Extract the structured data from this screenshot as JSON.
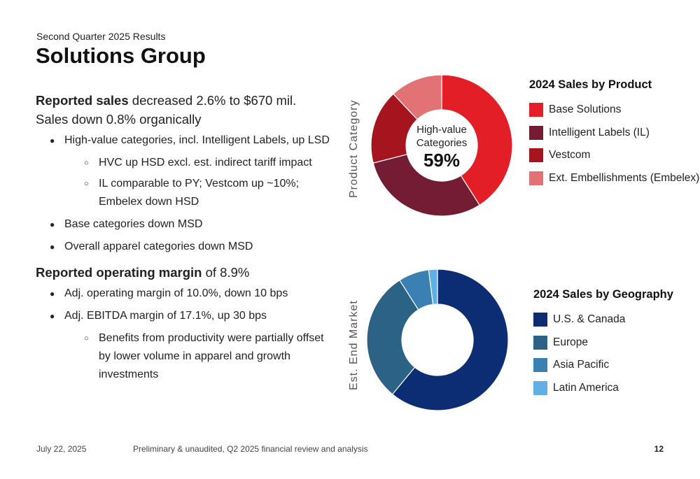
{
  "header": {
    "subtitle": "Second Quarter 2025 Results",
    "title": "Solutions Group"
  },
  "body": {
    "sales_bold": "Reported sales",
    "sales_rest": " decreased 2.6% to $670 mil.",
    "organic": "Sales down 0.8% organically",
    "b1": "High-value categories, incl. Intelligent Labels, up LSD",
    "b1_sub1": "HVC up HSD excl. est. indirect tariff impact",
    "b1_sub2": "IL comparable to PY; Vestcom up ~10%; Embelex down HSD",
    "b2": "Base categories down MSD",
    "b3": "Overall apparel categories down MSD",
    "margin_bold": "Reported operating margin",
    "margin_rest": " of 8.9%",
    "b4": "Adj. operating margin of 10.0%, down 10 bps",
    "b5": "Adj. EBITDA margin of 17.1%, up 30 bps",
    "b5_sub1": "Benefits from productivity were partially offset by lower volume in apparel and growth investments"
  },
  "chart_data": [
    {
      "type": "pie",
      "ylabel": "Product Category",
      "legend_title": "2024 Sales by Product",
      "center_label": "High-value Categories",
      "center_value": "59%",
      "categories": [
        "Base Solutions",
        "Intelligent Labels (IL)",
        "Vestcom",
        "Ext. Embellishments (Embelex)"
      ],
      "values": [
        41,
        30,
        17,
        12
      ],
      "colors": [
        "#e31e26",
        "#731c34",
        "#a6141d",
        "#e37274"
      ],
      "legend_position": "right"
    },
    {
      "type": "pie",
      "ylabel": "Est. End Market",
      "legend_title": "2024 Sales by Geography",
      "categories": [
        "U.S. & Canada",
        "Europe",
        "Asia Pacific",
        "Latin America"
      ],
      "values": [
        61,
        30,
        7,
        2
      ],
      "colors": [
        "#0c2d74",
        "#2b6286",
        "#3b80b3",
        "#5fb0e4"
      ],
      "legend_position": "right"
    }
  ],
  "footer": {
    "date": "July 22, 2025",
    "note": "Preliminary & unaudited, Q2 2025 financial review and analysis",
    "page": "12"
  }
}
